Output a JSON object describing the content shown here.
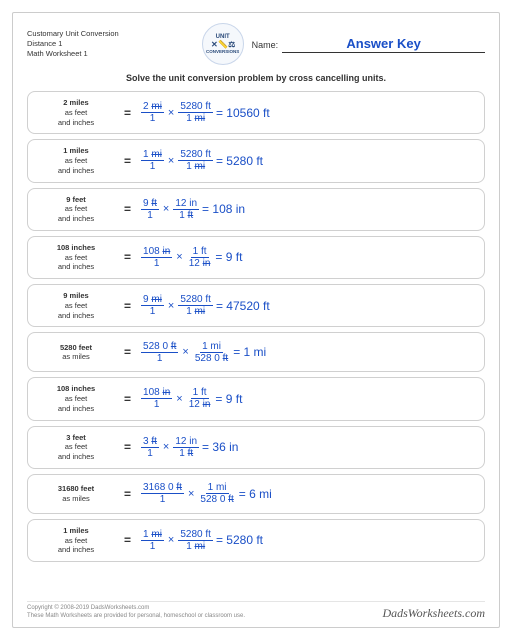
{
  "header": {
    "title1": "Customary Unit Conversion",
    "title2": "Distance 1",
    "title3": "Math Worksheet 1",
    "logo_top": "UNIT",
    "logo_icons": "✕ 📏 ⚖",
    "logo_bottom": "CONVERSIONS",
    "name_label": "Name:",
    "name_value": "Answer Key"
  },
  "instruction": "Solve the unit conversion problem by cross cancelling units.",
  "problems": [
    {
      "qty": "2 miles",
      "as": "as feet\nand inches",
      "f1n": "2 mi",
      "f1d": "1",
      "f2n": "5280 ft",
      "f2d": "1 mi",
      "ans": "= 10560 ft",
      "strike": [
        "mi",
        "mi"
      ]
    },
    {
      "qty": "1 miles",
      "as": "as feet\nand inches",
      "f1n": "1 mi",
      "f1d": "1",
      "f2n": "5280 ft",
      "f2d": "1 mi",
      "ans": "= 5280 ft",
      "strike": [
        "mi",
        "mi"
      ]
    },
    {
      "qty": "9 feet",
      "as": "as feet\nand inches",
      "f1n": "9 ft",
      "f1d": "1",
      "f2n": "12 in",
      "f2d": "1 ft",
      "ans": "= 108 in",
      "strike": [
        "ft",
        "ft"
      ]
    },
    {
      "qty": "108 inches",
      "as": "as feet\nand inches",
      "f1n": "108 in",
      "f1d": "1",
      "f2n": "1 ft",
      "f2d": "12 in",
      "ans": "= 9 ft",
      "strike": [
        "in",
        "in"
      ]
    },
    {
      "qty": "9 miles",
      "as": "as feet\nand inches",
      "f1n": "9 mi",
      "f1d": "1",
      "f2n": "5280 ft",
      "f2d": "1 mi",
      "ans": "= 47520 ft",
      "strike": [
        "mi",
        "mi"
      ]
    },
    {
      "qty": "5280 feet",
      "as": "as miles",
      "f1n": "528 0 ft",
      "f1d": "1",
      "f2n": "1 mi",
      "f2d": "528 0 ft",
      "ans": "= 1 mi",
      "strike": [
        "ft",
        "ft"
      ]
    },
    {
      "qty": "108 inches",
      "as": "as feet\nand inches",
      "f1n": "108 in",
      "f1d": "1",
      "f2n": "1 ft",
      "f2d": "12 in",
      "ans": "= 9 ft",
      "strike": [
        "in",
        "in"
      ]
    },
    {
      "qty": "3 feet",
      "as": "as feet\nand inches",
      "f1n": "3 ft",
      "f1d": "1",
      "f2n": "12 in",
      "f2d": "1 ft",
      "ans": "= 36 in",
      "strike": [
        "ft",
        "ft"
      ]
    },
    {
      "qty": "31680 feet",
      "as": "as miles",
      "f1n": "3168 0 ft",
      "f1d": "1",
      "f2n": "1 mi",
      "f2d": "528 0 ft",
      "ans": "= 6 mi",
      "strike": [
        "ft",
        "ft"
      ]
    },
    {
      "qty": "1 miles",
      "as": "as feet\nand inches",
      "f1n": "1 mi",
      "f1d": "1",
      "f2n": "5280 ft",
      "f2d": "1 mi",
      "ans": "= 5280 ft",
      "strike": [
        "mi",
        "mi"
      ]
    }
  ],
  "footer": {
    "copyright": "Copyright © 2008-2019 DadsWorksheets.com",
    "note": "These Math Worksheets are provided for personal, homeschool or classroom use.",
    "brand": "DadsWorksheets.com"
  },
  "colors": {
    "ink": "#1a4fc7",
    "border": "#d0d0d0"
  }
}
